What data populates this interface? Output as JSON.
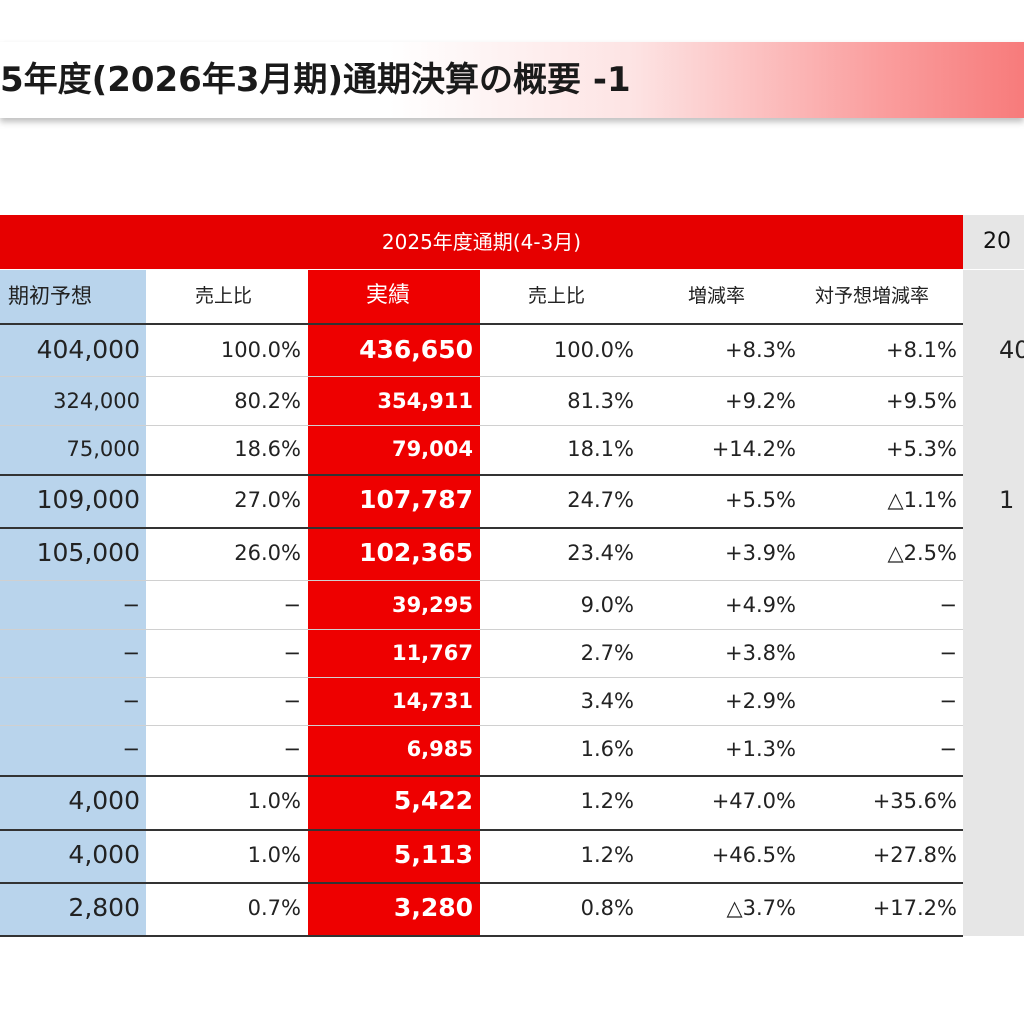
{
  "title": "5年度(2026年3月期)通期決算の概要 -1",
  "header": {
    "main_period": "2025年度通期(4-3月)",
    "prior_period_partial": "20"
  },
  "columns": {
    "forecast": "期初予想",
    "forecast_ratio": "売上比",
    "actual": "実績",
    "actual_ratio": "売上比",
    "yoy": "増減率",
    "vs_forecast": "対予想増減率"
  },
  "rows": [
    {
      "forecast": "404,000",
      "forecast_ratio": "100.0%",
      "actual": "436,650",
      "actual_ratio": "100.0%",
      "yoy": "+8.3%",
      "vs_forecast": "+8.1%",
      "prior": "40"
    },
    {
      "forecast": "324,000",
      "forecast_ratio": "80.2%",
      "actual": "354,911",
      "actual_ratio": "81.3%",
      "yoy": "+9.2%",
      "vs_forecast": "+9.5%",
      "prior": ""
    },
    {
      "forecast": "75,000",
      "forecast_ratio": "18.6%",
      "actual": "79,004",
      "actual_ratio": "18.1%",
      "yoy": "+14.2%",
      "vs_forecast": "+5.3%",
      "prior": ""
    },
    {
      "forecast": "109,000",
      "forecast_ratio": "27.0%",
      "actual": "107,787",
      "actual_ratio": "24.7%",
      "yoy": "+5.5%",
      "vs_forecast": "△1.1%",
      "prior": "1"
    },
    {
      "forecast": "105,000",
      "forecast_ratio": "26.0%",
      "actual": "102,365",
      "actual_ratio": "23.4%",
      "yoy": "+3.9%",
      "vs_forecast": "△2.5%",
      "prior": ""
    },
    {
      "forecast": "−",
      "forecast_ratio": "−",
      "actual": "39,295",
      "actual_ratio": "9.0%",
      "yoy": "+4.9%",
      "vs_forecast": "−",
      "prior": ""
    },
    {
      "forecast": "−",
      "forecast_ratio": "−",
      "actual": "11,767",
      "actual_ratio": "2.7%",
      "yoy": "+3.8%",
      "vs_forecast": "−",
      "prior": ""
    },
    {
      "forecast": "−",
      "forecast_ratio": "−",
      "actual": "14,731",
      "actual_ratio": "3.4%",
      "yoy": "+2.9%",
      "vs_forecast": "−",
      "prior": ""
    },
    {
      "forecast": "−",
      "forecast_ratio": "−",
      "actual": "6,985",
      "actual_ratio": "1.6%",
      "yoy": "+1.3%",
      "vs_forecast": "−",
      "prior": ""
    },
    {
      "forecast": "4,000",
      "forecast_ratio": "1.0%",
      "actual": "5,422",
      "actual_ratio": "1.2%",
      "yoy": "+47.0%",
      "vs_forecast": "+35.6%",
      "prior": ""
    },
    {
      "forecast": "4,000",
      "forecast_ratio": "1.0%",
      "actual": "5,113",
      "actual_ratio": "1.2%",
      "yoy": "+46.5%",
      "vs_forecast": "+27.8%",
      "prior": ""
    },
    {
      "forecast": "2,800",
      "forecast_ratio": "0.7%",
      "actual": "3,280",
      "actual_ratio": "0.8%",
      "yoy": "△3.7%",
      "vs_forecast": "+17.2%",
      "prior": ""
    }
  ],
  "colors": {
    "accent_red": "#e60000",
    "forecast_blue": "#b9d4ec",
    "prior_gray": "#e6e6e6"
  }
}
